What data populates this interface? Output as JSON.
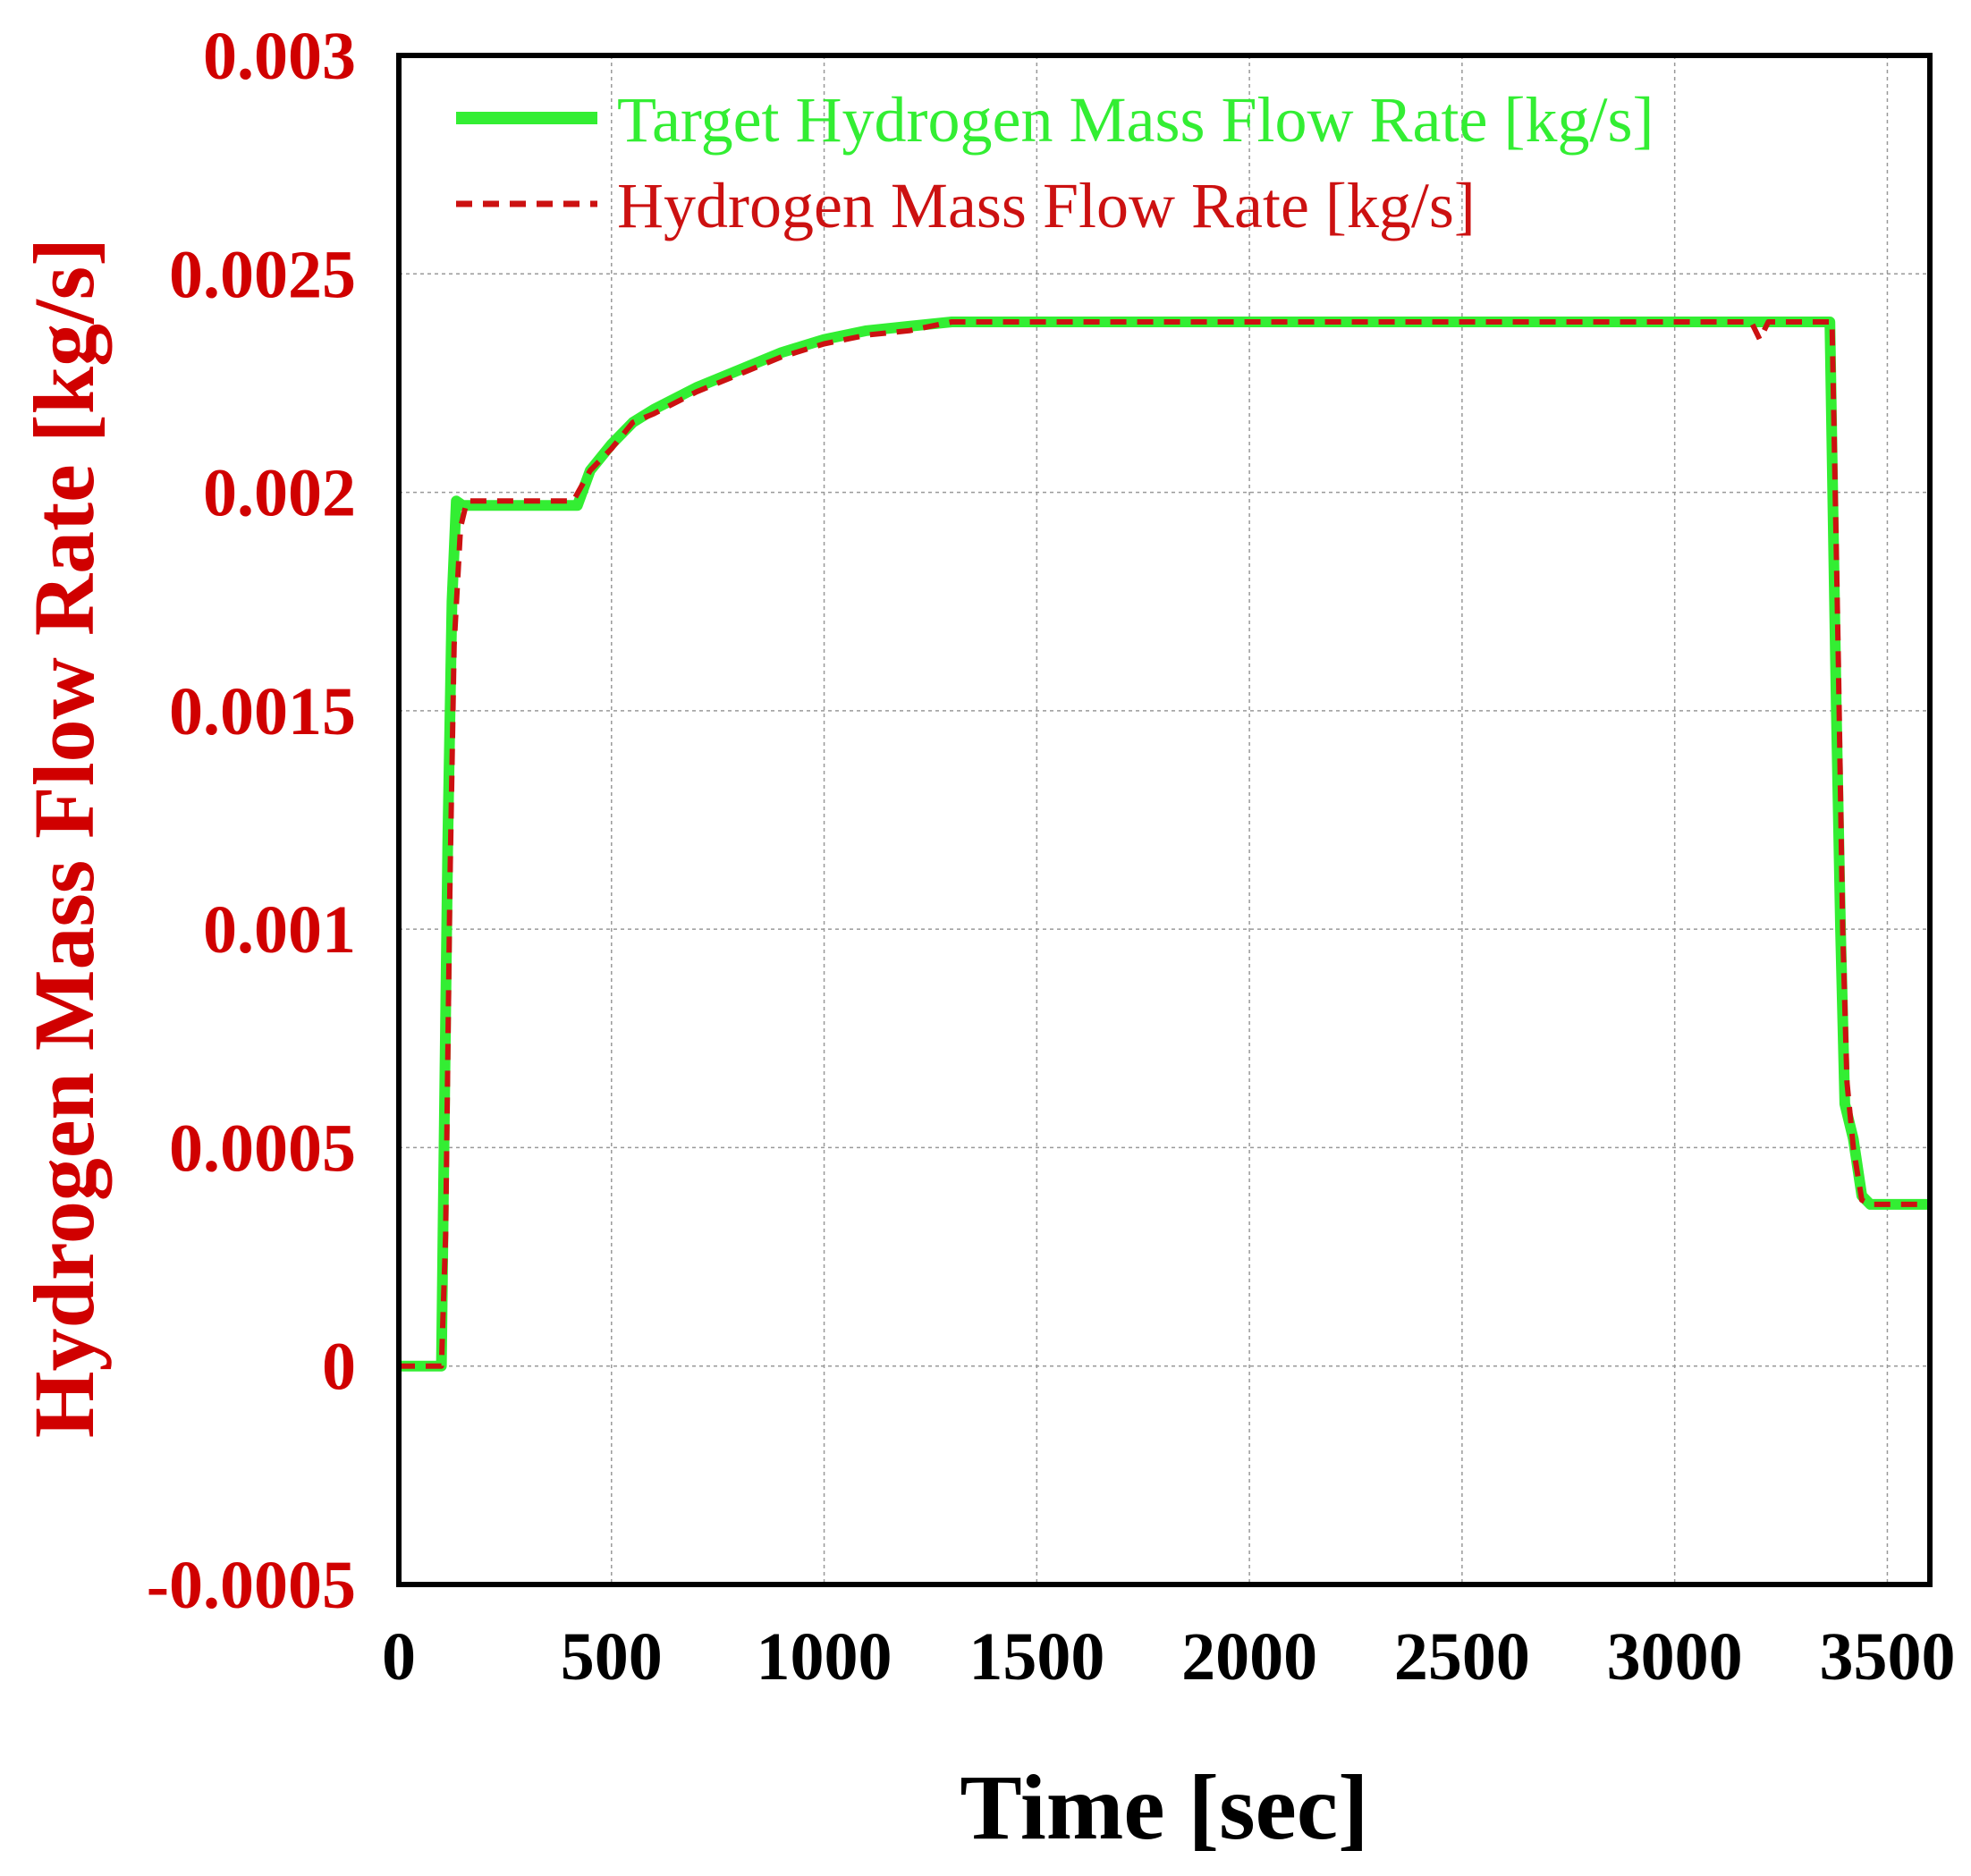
{
  "chart_data": {
    "type": "line",
    "title": "",
    "xlabel": "Time [sec]",
    "ylabel": "Hydrogen Mass Flow Rate [kg/s]",
    "xlim": [
      0,
      3600
    ],
    "ylim": [
      -0.0005,
      0.003
    ],
    "xticks": [
      0,
      500,
      1000,
      1500,
      2000,
      2500,
      3000,
      3500
    ],
    "xtick_labels": [
      "0",
      "500",
      "1000",
      "1500",
      "2000",
      "2500",
      "3000",
      "3500"
    ],
    "yticks": [
      -0.0005,
      0,
      0.0005,
      0.001,
      0.0015,
      0.002,
      0.0025,
      0.003
    ],
    "ytick_labels": [
      "-0.0005",
      "0",
      "0.0005",
      "0.001",
      "0.0015",
      "0.002",
      "0.0025",
      "0.003"
    ],
    "grid": true,
    "legend_position": "top-left",
    "series": [
      {
        "name": "Target Hydrogen Mass Flow Rate [kg/s]",
        "color": "#33ee33",
        "style": "solid",
        "x": [
          0,
          100,
          105,
          115,
          125,
          135,
          150,
          200,
          300,
          420,
          450,
          500,
          550,
          600,
          700,
          800,
          900,
          1000,
          1100,
          1200,
          1300,
          1400,
          1500,
          2000,
          2500,
          3000,
          3350,
          3365,
          3380,
          3390,
          3400,
          3420,
          3440,
          3460,
          3500,
          3600
        ],
        "y": [
          0,
          0,
          0.0004,
          0.0012,
          0.00175,
          0.00198,
          0.00197,
          0.00197,
          0.00197,
          0.00197,
          0.00205,
          0.00211,
          0.00216,
          0.00219,
          0.00224,
          0.00228,
          0.00232,
          0.00235,
          0.00237,
          0.00238,
          0.00239,
          0.00239,
          0.00239,
          0.00239,
          0.00239,
          0.00239,
          0.00239,
          0.00239,
          0.0015,
          0.001,
          0.0006,
          0.00052,
          0.00039,
          0.00037,
          0.00037,
          0.00037
        ]
      },
      {
        "name": "Hydrogen Mass Flow Rate [kg/s]",
        "color": "#cc1111",
        "style": "dashed",
        "x": [
          0,
          100,
          110,
          120,
          130,
          145,
          160,
          200,
          300,
          410,
          450,
          500,
          550,
          600,
          700,
          800,
          900,
          1000,
          1100,
          1200,
          1300,
          1400,
          1500,
          2000,
          2500,
          2700,
          3000,
          3180,
          3200,
          3220,
          3350,
          3370,
          3385,
          3395,
          3405,
          3420,
          3440,
          3460,
          3500,
          3600
        ],
        "y": [
          0,
          0,
          0.0003,
          0.0011,
          0.00165,
          0.00192,
          0.00198,
          0.00198,
          0.00198,
          0.00198,
          0.00205,
          0.0021,
          0.00216,
          0.00218,
          0.00223,
          0.00227,
          0.00231,
          0.00234,
          0.00236,
          0.00237,
          0.00239,
          0.00239,
          0.00239,
          0.00239,
          0.00239,
          0.00239,
          0.00239,
          0.00239,
          0.00235,
          0.00239,
          0.00239,
          0.00239,
          0.0016,
          0.001,
          0.00065,
          0.0005,
          0.00038,
          0.00037,
          0.00037,
          0.00037
        ]
      }
    ]
  }
}
